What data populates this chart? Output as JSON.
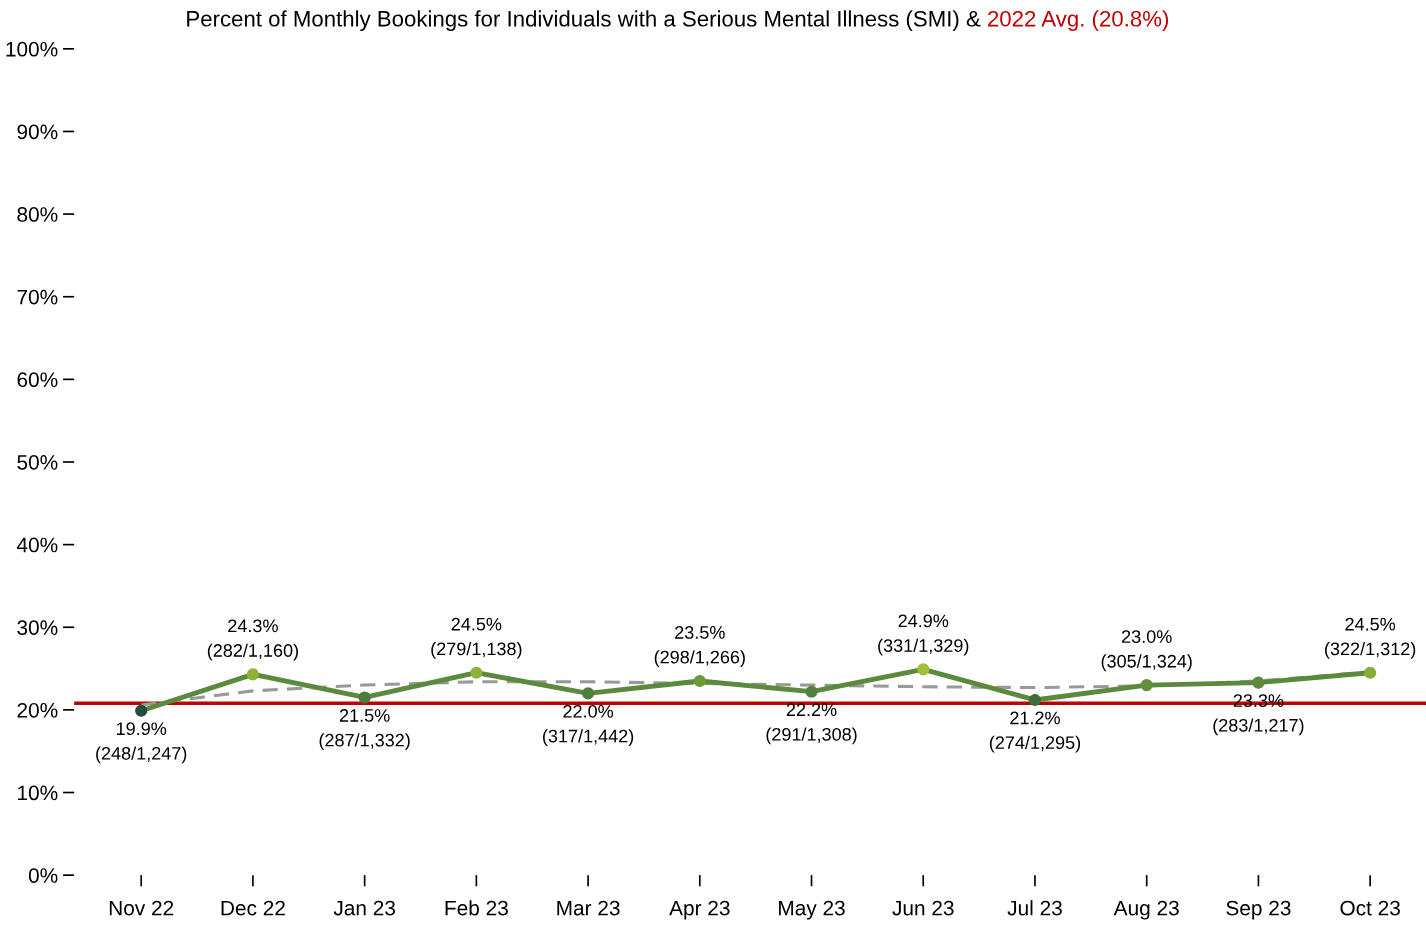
{
  "chart_data": {
    "type": "line",
    "title": "Percent of Monthly Bookings for Individuals with a Serious Mental Illness (SMI) & ",
    "categories": [
      "Nov 22",
      "Dec 22",
      "Jan 23",
      "Feb 23",
      "Mar 23",
      "Apr 23",
      "May 23",
      "Jun 23",
      "Jul 23",
      "Aug 23",
      "Sep 23",
      "Oct 23"
    ],
    "series": [
      {
        "color": "#5b8a3c",
        "colors": [
          "#1f4e3d",
          "#8fb339",
          "#4a7a3e",
          "#8fb339",
          "#4f7f3f",
          "#6e9a3b",
          "#557f40",
          "#a2c037",
          "#3f6e3d",
          "#62903c",
          "#5c8a3d",
          "#86ad39"
        ],
        "values": [
          19.9,
          24.3,
          21.5,
          24.5,
          22.0,
          23.5,
          22.2,
          24.9,
          21.2,
          23.0,
          23.3,
          24.5
        ],
        "value_labels": [
          "19.9%\n(248/1,247)",
          "24.3%\n(282/1,160)",
          "21.5%\n(287/1,332)",
          "24.5%\n(279/1,138)",
          "22.0%\n(317/1,442)",
          "23.5%\n(298/1,266)",
          "22.2%\n(291/1,308)",
          "24.9%\n(331/1,329)",
          "21.2%\n(274/1,295)",
          "23.0%\n(305/1,324)",
          "23.3%\n(283/1,217)",
          "24.5%\n(322/1,312)"
        ],
        "marker": "circle",
        "line_style": "solid"
      },
      {
        "type": "line",
        "color": "#999999",
        "values": [
          20.6,
          22.3,
          23.0,
          23.4,
          23.4,
          23.2,
          23.0,
          22.8,
          22.7,
          22.9,
          23.5,
          24.6
        ],
        "marker": "none",
        "line_style": "dashed"
      }
    ],
    "ylim": [
      0,
      100
    ],
    "yticks": [
      {
        "value": 0,
        "label": "0%"
      },
      {
        "value": 10,
        "label": "10%"
      },
      {
        "value": 20,
        "label": "20%"
      },
      {
        "value": 30,
        "label": "30%"
      },
      {
        "value": 40,
        "label": "40%"
      },
      {
        "value": 50,
        "label": "50%"
      },
      {
        "value": 60,
        "label": "60%"
      },
      {
        "value": 70,
        "label": "70%"
      },
      {
        "value": 80,
        "label": "80%"
      },
      {
        "value": 90,
        "label": "90%"
      },
      {
        "value": 100,
        "label": "100%"
      }
    ],
    "ref_lines": [
      {
        "axis": "y",
        "value": 20.8,
        "label": "2022 Avg. (20.8%)",
        "color": "#c00000",
        "line_style": "solid"
      }
    ],
    "grid": false,
    "legend": false
  }
}
